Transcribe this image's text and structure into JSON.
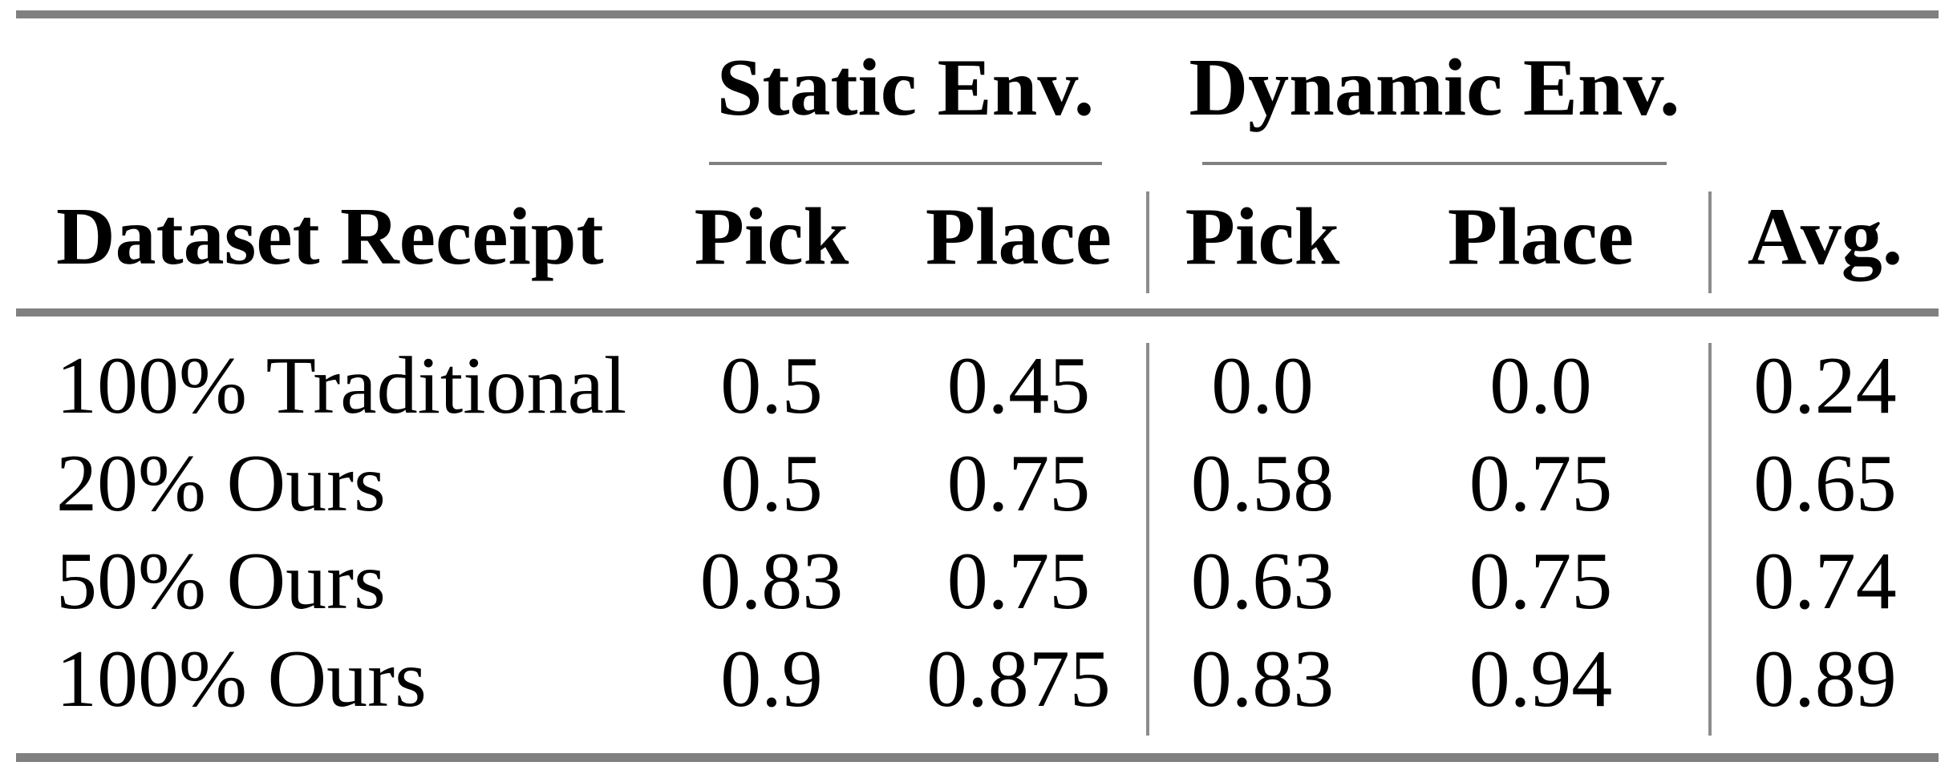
{
  "table": {
    "group_headers": {
      "static": "Static Env.",
      "dynamic": "Dynamic Env."
    },
    "column_headers": {
      "dataset": "Dataset Receipt",
      "static_pick": "Pick",
      "static_place": "Place",
      "dynamic_pick": "Pick",
      "dynamic_place": "Place",
      "avg": "Avg."
    },
    "rows": [
      {
        "label": "100% Traditional",
        "values": [
          "0.5",
          "0.45",
          "0.0",
          "0.0",
          "0.24"
        ]
      },
      {
        "label": "20% Ours",
        "values": [
          "0.5",
          "0.75",
          "0.58",
          "0.75",
          "0.65"
        ]
      },
      {
        "label": "50% Ours",
        "values": [
          "0.83",
          "0.75",
          "0.63",
          "0.75",
          "0.74"
        ]
      },
      {
        "label": "100% Ours",
        "values": [
          "0.9",
          "0.875",
          "0.83",
          "0.94",
          "0.89"
        ]
      }
    ],
    "colors": {
      "rule_gray": "#808080",
      "separator_gray": "#8c8c8c",
      "text": "#000000",
      "background": "#ffffff"
    }
  },
  "chart_data": {
    "type": "table",
    "columns": [
      "Dataset Receipt",
      "Static Env. Pick",
      "Static Env. Place",
      "Dynamic Env. Pick",
      "Dynamic Env. Place",
      "Avg."
    ],
    "rows": [
      [
        "100% Traditional",
        0.5,
        0.45,
        0.0,
        0.0,
        0.24
      ],
      [
        "20% Ours",
        0.5,
        0.75,
        0.58,
        0.75,
        0.65
      ],
      [
        "50% Ours",
        0.83,
        0.75,
        0.63,
        0.75,
        0.74
      ],
      [
        "100% Ours",
        0.9,
        0.875,
        0.83,
        0.94,
        0.89
      ]
    ]
  }
}
